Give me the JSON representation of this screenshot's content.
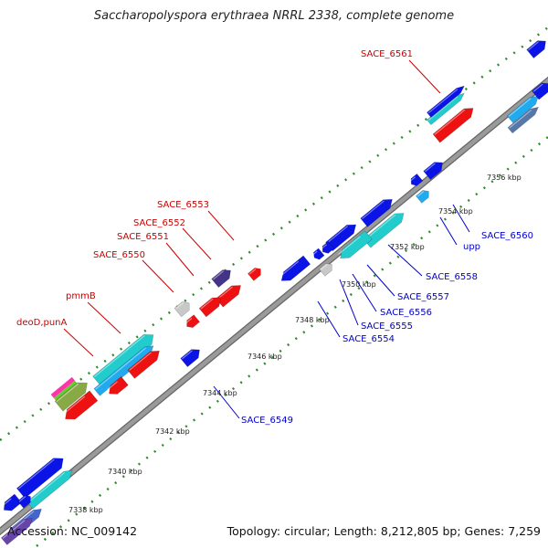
{
  "title": "Saccharopolyspora erythraea NRRL 2338, complete genome",
  "footer": {
    "accession": "Accession: NC_009142",
    "summary": "Topology: circular; Length: 8,212,805 bp; Genes: 7,259"
  },
  "colors": {
    "background": "#ffffff",
    "backbone": "#9a9a9a",
    "backbone_edge": "#666666",
    "tick": "#2e8b2e",
    "label_red": "#cc0000",
    "label_blue": "#0000cc",
    "forward_blue": "#0a14e6",
    "reverse_red": "#ee1111",
    "cyan": "#22cccc",
    "light_blue": "#22aaee",
    "dark_slate": "#443388",
    "grey": "#c8c8c8"
  },
  "ticks": [
    {
      "text": "7338 kbp",
      "kbp": 7338
    },
    {
      "text": "7340 kbp",
      "kbp": 7340
    },
    {
      "text": "7342 kbp",
      "kbp": 7342
    },
    {
      "text": "7344 kbp",
      "kbp": 7344
    },
    {
      "text": "7346 kbp",
      "kbp": 7346
    },
    {
      "text": "7348 kbp",
      "kbp": 7348
    },
    {
      "text": "7350 kbp",
      "kbp": 7350
    },
    {
      "text": "7352 kbp",
      "kbp": 7352
    },
    {
      "text": "7354 kbp",
      "kbp": 7354
    },
    {
      "text": "7356 kbp",
      "kbp": 7356
    }
  ],
  "labels": [
    {
      "text": "SACE_6561",
      "color": "red"
    },
    {
      "text": "SACE_6553",
      "color": "red"
    },
    {
      "text": "SACE_6552",
      "color": "red"
    },
    {
      "text": "SACE_6551",
      "color": "red"
    },
    {
      "text": "SACE_6550",
      "color": "red"
    },
    {
      "text": "pmmB",
      "color": "red"
    },
    {
      "text": "deoD,punA",
      "color": "red"
    },
    {
      "text": "SACE_6560",
      "color": "blue"
    },
    {
      "text": "upp",
      "color": "blue"
    },
    {
      "text": "SACE_6558",
      "color": "blue"
    },
    {
      "text": "SACE_6557",
      "color": "blue"
    },
    {
      "text": "SACE_6556",
      "color": "blue"
    },
    {
      "text": "SACE_6555",
      "color": "blue"
    },
    {
      "text": "SACE_6554",
      "color": "blue"
    },
    {
      "text": "SACE_6549",
      "color": "blue"
    }
  ]
}
